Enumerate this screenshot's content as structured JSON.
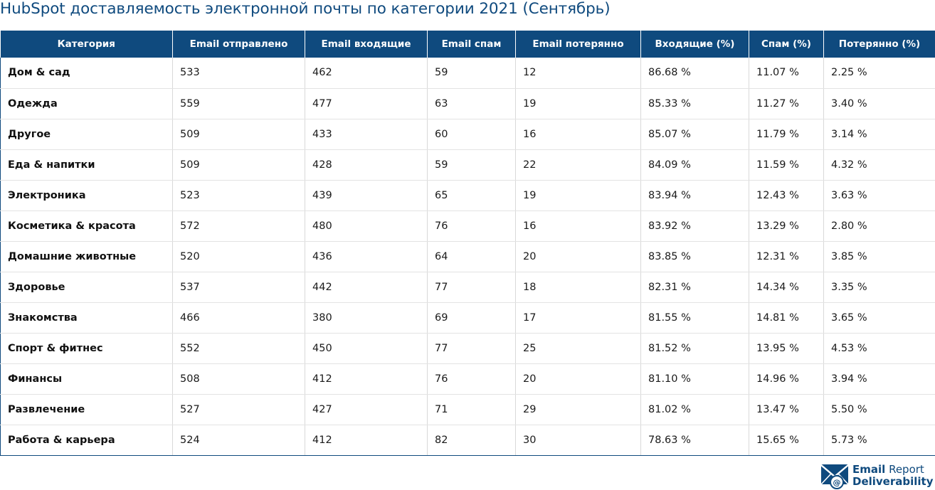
{
  "title": "HubSpot доставляемость электронной почты по категории 2021 (Сентябрь)",
  "table": {
    "headers": [
      "Категория",
      "Email отправлено",
      "Email входящие",
      "Email спам",
      "Email потерянно",
      "Входящие (%)",
      "Спам (%)",
      "Потерянно (%)"
    ],
    "rows": [
      [
        "Дом & сад",
        "533",
        "462",
        "59",
        "12",
        "86.68 %",
        "11.07 %",
        "2.25 %"
      ],
      [
        "Одежда",
        "559",
        "477",
        "63",
        "19",
        "85.33 %",
        "11.27 %",
        "3.40 %"
      ],
      [
        "Другое",
        "509",
        "433",
        "60",
        "16",
        "85.07 %",
        "11.79 %",
        "3.14 %"
      ],
      [
        "Еда & напитки",
        "509",
        "428",
        "59",
        "22",
        "84.09 %",
        "11.59 %",
        "4.32 %"
      ],
      [
        "Электроника",
        "523",
        "439",
        "65",
        "19",
        "83.94 %",
        "12.43 %",
        "3.63 %"
      ],
      [
        "Косметика & красота",
        "572",
        "480",
        "76",
        "16",
        "83.92 %",
        "13.29 %",
        "2.80 %"
      ],
      [
        "Домашние животные",
        "520",
        "436",
        "64",
        "20",
        "83.85 %",
        "12.31 %",
        "3.85 %"
      ],
      [
        "Здоровье",
        "537",
        "442",
        "77",
        "18",
        "82.31 %",
        "14.34 %",
        "3.35 %"
      ],
      [
        "Знакомства",
        "466",
        "380",
        "69",
        "17",
        "81.55 %",
        "14.81 %",
        "3.65 %"
      ],
      [
        "Спорт & фитнес",
        "552",
        "450",
        "77",
        "25",
        "81.52 %",
        "13.95 %",
        "4.53 %"
      ],
      [
        "Финансы",
        "508",
        "412",
        "76",
        "20",
        "81.10 %",
        "14.96 %",
        "3.94 %"
      ],
      [
        "Развлечение",
        "527",
        "427",
        "71",
        "29",
        "81.02 %",
        "13.47 %",
        "5.50 %"
      ],
      [
        "Работа & карьера",
        "524",
        "412",
        "82",
        "30",
        "78.63 %",
        "15.65 %",
        "5.73 %"
      ]
    ]
  },
  "brand": {
    "line1_bold": "Email",
    "line1_light": " Report",
    "line2": "Deliverability",
    "icon": "envelope-at-icon",
    "color": "#0f4a7e"
  },
  "colors": {
    "header_bg": "#0f4a7e",
    "header_text": "#ffffff",
    "title_text": "#0f4a7e"
  }
}
